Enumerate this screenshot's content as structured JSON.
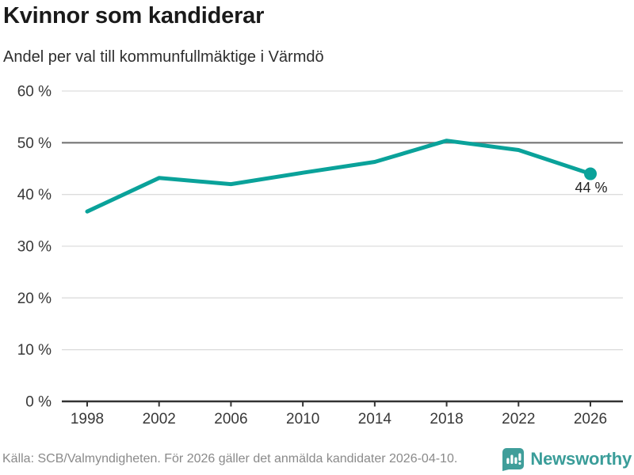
{
  "header": {
    "title": "Kvinnor som kandiderar",
    "subtitle": "Andel per val till kommunfullmäktige i Värmdö"
  },
  "chart_data": {
    "type": "line",
    "title": "Kvinnor som kandiderar",
    "subtitle": "Andel per val till kommunfullmäktige i Värmdö",
    "x": [
      1998,
      2002,
      2006,
      2010,
      2014,
      2018,
      2022,
      2026
    ],
    "values": [
      36.7,
      43.2,
      42.0,
      44.2,
      46.3,
      50.4,
      48.6,
      44.0
    ],
    "xlabel": "",
    "ylabel": "",
    "ylim": [
      0,
      60
    ],
    "yticks": [
      0,
      10,
      20,
      30,
      40,
      50,
      60
    ],
    "ytick_labels": [
      "0 %",
      "10 %",
      "20 %",
      "30 %",
      "40 %",
      "50 %",
      "60 %"
    ],
    "xtick_labels": [
      "1998",
      "2002",
      "2006",
      "2010",
      "2014",
      "2018",
      "2022",
      "2026"
    ],
    "grid": true,
    "legend": false,
    "reference_line_y": 50,
    "last_point_label": "44 %",
    "marker_on_last_point": true
  },
  "footer": {
    "source": "Källa: SCB/Valmyndigheten. För 2026 gäller det anmälda kandidater 2026-04-10.",
    "brand": "Newsworthy"
  },
  "colors": {
    "line": "#0aa29a",
    "marker": "#0aa29a",
    "reference_line": "#757575",
    "gridline": "#dddddd",
    "axis": "#333333",
    "tick_label": "#383838",
    "title": "#1a1a1a",
    "subtitle": "#2e2e2e",
    "annotation": "#222222",
    "source_text": "#8a8a8a",
    "brand_teal": "#3a9d99",
    "logo_fill": "#3f9e9a"
  }
}
